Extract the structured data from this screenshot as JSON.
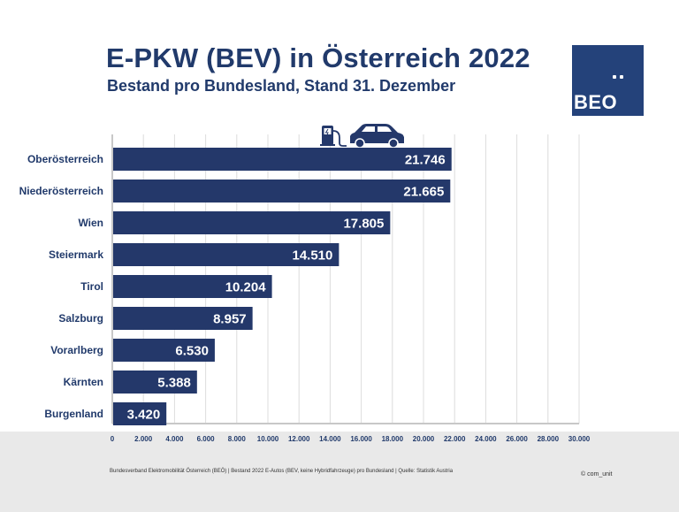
{
  "header": {
    "title": "E-PKW (BEV) in Österreich 2022",
    "subtitle": "Bestand pro Bundesland, Stand 31. Dezember"
  },
  "logo": {
    "text": "BEO"
  },
  "footer": {
    "source": "Bundesverband Elektromobilität Österreich (BEÖ) | Bestand 2022 E-Autos (BEV, keine Hybridfahrzeuge) pro Bundesland | Quelle: Statistik Austria",
    "copyright": "© com_unit"
  },
  "colors": {
    "bar": "#24386a",
    "text": "#213a6b",
    "grid": "#dcdcdc",
    "axis": "#c8c8c8"
  },
  "icons": [
    "charging-station-icon",
    "car-icon"
  ],
  "chart_data": {
    "type": "bar",
    "orientation": "horizontal",
    "categories": [
      "Oberösterreich",
      "Niederösterreich",
      "Wien",
      "Steiermark",
      "Tirol",
      "Salzburg",
      "Vorarlberg",
      "Kärnten",
      "Burgenland"
    ],
    "values": [
      21746,
      21665,
      17805,
      14510,
      10204,
      8957,
      6530,
      5388,
      3420
    ],
    "value_labels": [
      "21.746",
      "21.665",
      "17.805",
      "14.510",
      "10.204",
      "8.957",
      "6.530",
      "5.388",
      "3.420"
    ],
    "xlim": [
      0,
      30000
    ],
    "ticks": [
      0,
      2000,
      4000,
      6000,
      8000,
      10000,
      12000,
      14000,
      16000,
      18000,
      20000,
      22000,
      24000,
      26000,
      28000,
      30000
    ],
    "tick_labels": [
      "0",
      "2.000",
      "4.000",
      "6.000",
      "8.000",
      "10.000",
      "12.000",
      "14.000",
      "16.000",
      "18.000",
      "20.000",
      "22.000",
      "24.000",
      "26.000",
      "28.000",
      "30.000"
    ],
    "grid": true,
    "legend": "none"
  }
}
